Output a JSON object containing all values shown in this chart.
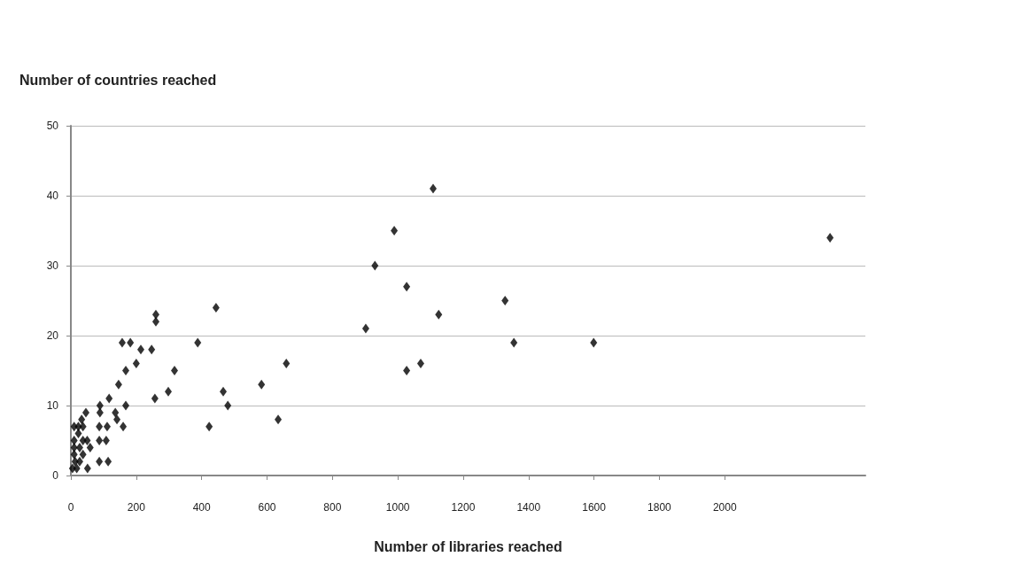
{
  "chart_data": {
    "type": "scatter",
    "xlabel": "Number of libraries reached",
    "ylabel": "Number of countries reached",
    "x": [
      260,
      260,
      444,
      157,
      182,
      214,
      247,
      388,
      200,
      168,
      317,
      146,
      659,
      583,
      117,
      257,
      298,
      466,
      480,
      168,
      89,
      46,
      89,
      136,
      141,
      33,
      634,
      423,
      160,
      87,
      111,
      87,
      108,
      87,
      114,
      51,
      10,
      23,
      37,
      23,
      10,
      37,
      50,
      59,
      10,
      27,
      10,
      37,
      13,
      27,
      5,
      18,
      1108,
      989,
      930,
      1027,
      1328,
      1125,
      902,
      1355,
      1599,
      1027,
      1070,
      2322
    ],
    "values": [
      23,
      22,
      24,
      19,
      19,
      18,
      18,
      19,
      16,
      15,
      15,
      13,
      16,
      13,
      11,
      11,
      12,
      12,
      10,
      10,
      10,
      9,
      9,
      9,
      8,
      8,
      8,
      7,
      7,
      7,
      7,
      5,
      5,
      2,
      2,
      1,
      7,
      7,
      7,
      6,
      5,
      5,
      5,
      4,
      4,
      4,
      3,
      3,
      2,
      2,
      1,
      1,
      41,
      35,
      30,
      27,
      25,
      23,
      21,
      19,
      19,
      15,
      16,
      34
    ],
    "color": "#000000",
    "marker": "diamond",
    "grid": "y",
    "xlim": [
      0,
      2430
    ],
    "xticks": [
      0,
      200,
      400,
      600,
      800,
      1000,
      1200,
      1400,
      1600,
      1800,
      2000
    ],
    "ylim": [
      0,
      50
    ],
    "yticks": [
      0,
      10,
      20,
      30,
      40,
      50
    ]
  }
}
